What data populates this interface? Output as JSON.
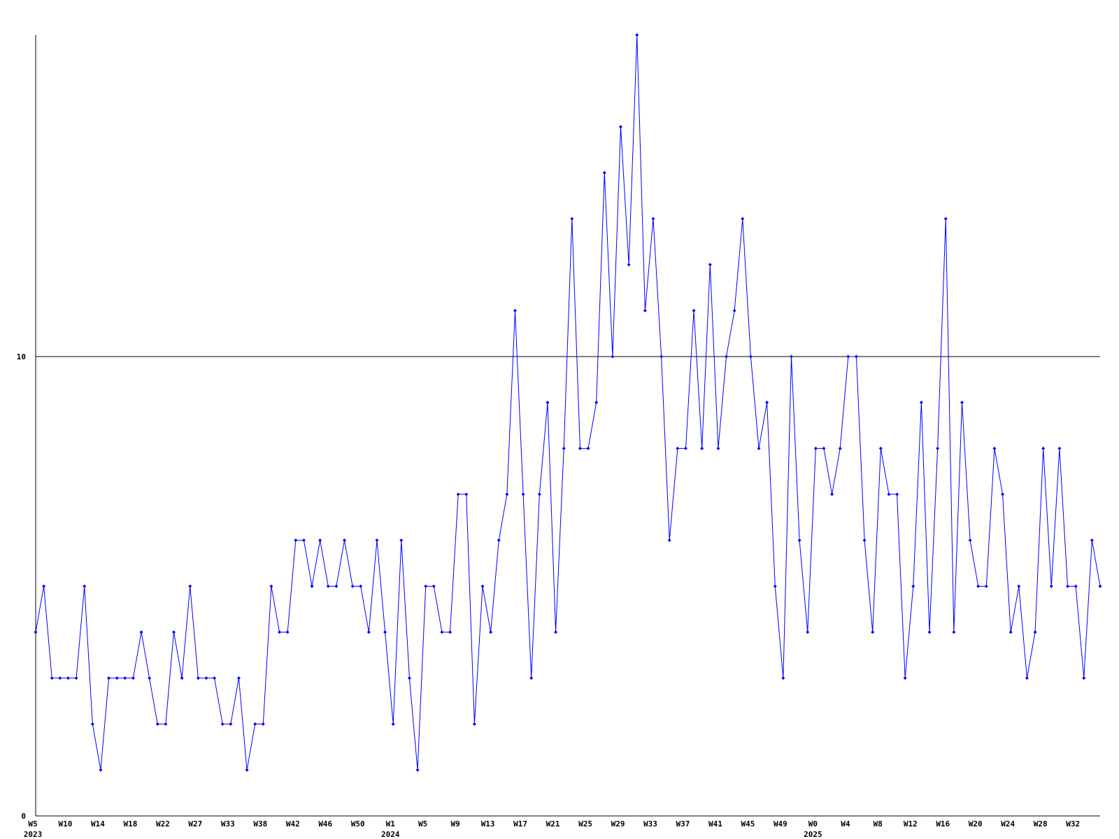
{
  "chart_data": {
    "type": "line",
    "categories": [
      "W5",
      null,
      null,
      null,
      "W10",
      null,
      null,
      null,
      "W14",
      null,
      null,
      null,
      "W18",
      null,
      null,
      null,
      "W22",
      null,
      null,
      null,
      "W27",
      null,
      null,
      null,
      "W33",
      null,
      null,
      null,
      "W38",
      null,
      null,
      null,
      "W42",
      null,
      null,
      null,
      "W46",
      null,
      null,
      null,
      "W50",
      null,
      null,
      null,
      "W1",
      null,
      null,
      null,
      "W5",
      null,
      null,
      null,
      "W9",
      null,
      null,
      null,
      "W13",
      null,
      null,
      null,
      "W17",
      null,
      null,
      null,
      "W21",
      null,
      null,
      null,
      "W25",
      null,
      null,
      null,
      "W29",
      null,
      null,
      null,
      "W33",
      null,
      null,
      null,
      "W37",
      null,
      null,
      null,
      "W41",
      null,
      null,
      null,
      "W45",
      null,
      null,
      null,
      "W49",
      null,
      null,
      null,
      "W0",
      null,
      null,
      null,
      "W4",
      null,
      null,
      null,
      "W8",
      null,
      null,
      null,
      "W12",
      null,
      null,
      null,
      "W16",
      null,
      null,
      null,
      "W20",
      null,
      null,
      null,
      "W24",
      null,
      null,
      null,
      "W28",
      null,
      null,
      null,
      "W32",
      null,
      null,
      null
    ],
    "category_years": [
      "2023",
      null,
      null,
      null,
      null,
      null,
      null,
      null,
      null,
      null,
      null,
      null,
      null,
      null,
      null,
      null,
      null,
      null,
      null,
      null,
      null,
      null,
      null,
      null,
      null,
      null,
      null,
      null,
      null,
      null,
      null,
      null,
      null,
      null,
      null,
      null,
      null,
      null,
      null,
      null,
      null,
      null,
      null,
      null,
      "2024",
      null,
      null,
      null,
      null,
      null,
      null,
      null,
      null,
      null,
      null,
      null,
      null,
      null,
      null,
      null,
      null,
      null,
      null,
      null,
      null,
      null,
      null,
      null,
      null,
      null,
      null,
      null,
      null,
      null,
      null,
      null,
      null,
      null,
      null,
      null,
      null,
      null,
      null,
      null,
      null,
      null,
      null,
      null,
      null,
      null,
      null,
      null,
      null,
      null,
      null,
      null,
      "2025",
      null,
      null,
      null,
      null,
      null,
      null,
      null,
      null,
      null,
      null,
      null,
      null,
      null,
      null,
      null,
      null,
      null,
      null,
      null,
      null,
      null,
      null,
      null,
      null,
      null,
      null,
      null,
      null,
      null,
      null,
      null,
      null,
      null,
      null,
      null
    ],
    "series": [
      {
        "color": "#0000ff",
        "values": [
          4,
          5,
          3,
          3,
          3,
          3,
          5,
          2,
          1,
          3,
          3,
          3,
          3,
          4,
          3,
          2,
          2,
          4,
          3,
          5,
          3,
          3,
          3,
          2,
          2,
          3,
          1,
          2,
          2,
          5,
          4,
          4,
          6,
          6,
          5,
          6,
          5,
          5,
          6,
          5,
          5,
          4,
          6,
          4,
          2,
          6,
          3,
          1,
          5,
          5,
          4,
          4,
          7,
          7,
          2,
          5,
          4,
          6,
          7,
          11,
          7,
          3,
          7,
          9,
          4,
          8,
          13,
          8,
          8,
          9,
          14,
          10,
          15,
          12,
          17,
          11,
          13,
          10,
          6,
          8,
          8,
          11,
          8,
          12,
          8,
          10,
          11,
          13,
          10,
          8,
          9,
          5,
          3,
          10,
          6,
          4,
          8,
          8,
          7,
          8,
          10,
          10,
          6,
          4,
          8,
          7,
          7,
          3,
          5,
          9,
          4,
          8,
          13,
          4,
          9,
          6,
          5,
          5,
          8,
          7,
          4,
          5,
          3,
          4,
          8,
          5,
          8,
          5,
          5,
          3,
          6,
          5
        ]
      }
    ],
    "ylim": [
      0,
      17
    ],
    "yticks": [
      0,
      10
    ],
    "grid": true
  }
}
